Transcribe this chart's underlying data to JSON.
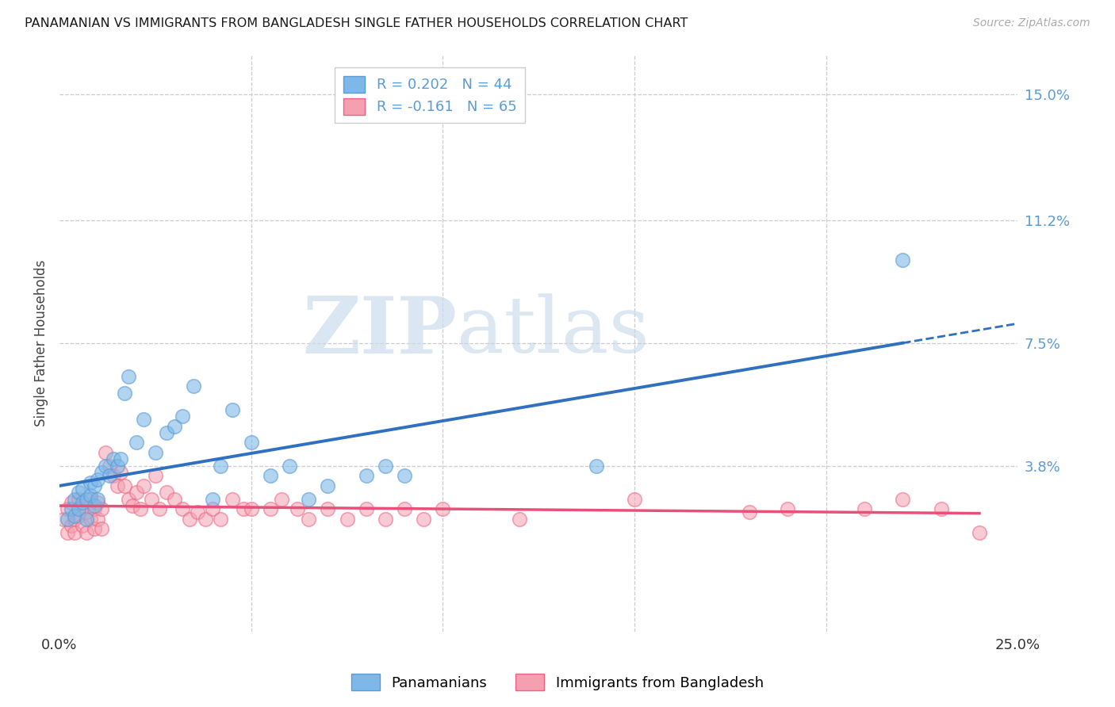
{
  "title": "PANAMANIAN VS IMMIGRANTS FROM BANGLADESH SINGLE FATHER HOUSEHOLDS CORRELATION CHART",
  "source": "Source: ZipAtlas.com",
  "ylabel": "Single Father Households",
  "ytick_labels": [
    "15.0%",
    "11.2%",
    "7.5%",
    "3.8%"
  ],
  "ytick_values": [
    0.15,
    0.112,
    0.075,
    0.038
  ],
  "xmin": 0.0,
  "xmax": 0.25,
  "ymin": -0.012,
  "ymax": 0.162,
  "series1_name": "Panamanians",
  "series2_name": "Immigrants from Bangladesh",
  "series1_color": "#7db8e8",
  "series2_color": "#f4a0b0",
  "series1_edge": "#5b9bd5",
  "series2_edge": "#f06080",
  "series1_line_color": "#3070c0",
  "series2_line_color": "#e8507a",
  "pan_R": 0.202,
  "pan_N": 44,
  "ban_R": -0.161,
  "ban_N": 65,
  "panamanian_x": [
    0.002,
    0.003,
    0.004,
    0.004,
    0.005,
    0.005,
    0.006,
    0.006,
    0.007,
    0.007,
    0.008,
    0.008,
    0.009,
    0.009,
    0.01,
    0.01,
    0.011,
    0.012,
    0.013,
    0.014,
    0.015,
    0.016,
    0.017,
    0.018,
    0.02,
    0.022,
    0.025,
    0.028,
    0.03,
    0.032,
    0.035,
    0.04,
    0.042,
    0.045,
    0.05,
    0.055,
    0.06,
    0.065,
    0.07,
    0.08,
    0.085,
    0.09,
    0.14,
    0.22
  ],
  "panamanian_y": [
    0.022,
    0.025,
    0.028,
    0.023,
    0.03,
    0.025,
    0.031,
    0.027,
    0.028,
    0.022,
    0.033,
    0.029,
    0.032,
    0.026,
    0.034,
    0.028,
    0.036,
    0.038,
    0.035,
    0.04,
    0.038,
    0.04,
    0.06,
    0.065,
    0.045,
    0.052,
    0.042,
    0.048,
    0.05,
    0.053,
    0.062,
    0.028,
    0.038,
    0.055,
    0.045,
    0.035,
    0.038,
    0.028,
    0.032,
    0.035,
    0.038,
    0.035,
    0.038,
    0.1
  ],
  "bangladesh_x": [
    0.001,
    0.002,
    0.002,
    0.003,
    0.003,
    0.004,
    0.004,
    0.005,
    0.005,
    0.006,
    0.006,
    0.007,
    0.007,
    0.008,
    0.008,
    0.009,
    0.009,
    0.01,
    0.01,
    0.011,
    0.011,
    0.012,
    0.013,
    0.014,
    0.015,
    0.016,
    0.017,
    0.018,
    0.019,
    0.02,
    0.021,
    0.022,
    0.024,
    0.025,
    0.026,
    0.028,
    0.03,
    0.032,
    0.034,
    0.036,
    0.038,
    0.04,
    0.042,
    0.045,
    0.048,
    0.05,
    0.055,
    0.058,
    0.062,
    0.065,
    0.07,
    0.075,
    0.08,
    0.085,
    0.09,
    0.095,
    0.1,
    0.12,
    0.15,
    0.18,
    0.19,
    0.21,
    0.22,
    0.23,
    0.24
  ],
  "bangladesh_y": [
    0.022,
    0.025,
    0.018,
    0.027,
    0.02,
    0.022,
    0.018,
    0.028,
    0.023,
    0.026,
    0.02,
    0.024,
    0.018,
    0.028,
    0.022,
    0.025,
    0.019,
    0.027,
    0.022,
    0.025,
    0.019,
    0.042,
    0.038,
    0.035,
    0.032,
    0.036,
    0.032,
    0.028,
    0.026,
    0.03,
    0.025,
    0.032,
    0.028,
    0.035,
    0.025,
    0.03,
    0.028,
    0.025,
    0.022,
    0.024,
    0.022,
    0.025,
    0.022,
    0.028,
    0.025,
    0.025,
    0.025,
    0.028,
    0.025,
    0.022,
    0.025,
    0.022,
    0.025,
    0.022,
    0.025,
    0.022,
    0.025,
    0.022,
    0.028,
    0.024,
    0.025,
    0.025,
    0.028,
    0.025,
    0.018
  ]
}
